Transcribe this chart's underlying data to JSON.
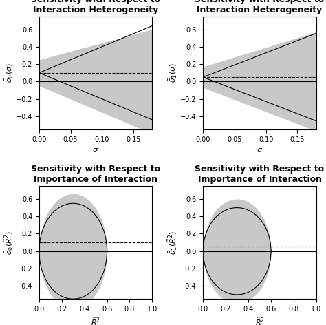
{
  "ylim": [
    -0.55,
    0.75
  ],
  "yticks": [
    -0.4,
    -0.2,
    0.0,
    0.2,
    0.4,
    0.6
  ],
  "sigma_max": 0.18,
  "gray_fill": "#c8c8c8",
  "line_color": "#000000",
  "bg_color": "#ffffff",
  "title_fontsize": 9,
  "label_fontsize": 8,
  "tick_fontsize": 7
}
